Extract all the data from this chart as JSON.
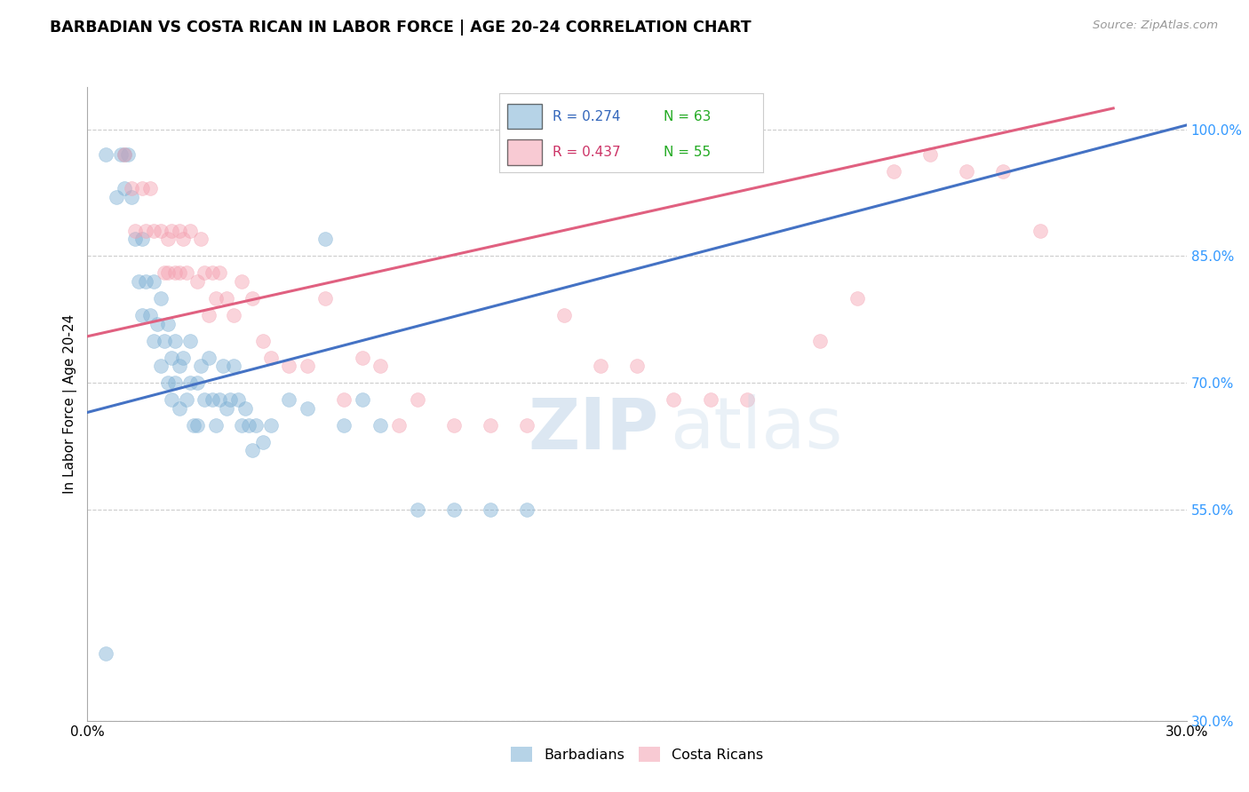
{
  "title": "BARBADIAN VS COSTA RICAN IN LABOR FORCE | AGE 20-24 CORRELATION CHART",
  "source": "Source: ZipAtlas.com",
  "ylabel": "In Labor Force | Age 20-24",
  "xlim": [
    0.0,
    0.3
  ],
  "ylim": [
    0.3,
    1.05
  ],
  "xtick_positions": [
    0.0,
    0.05,
    0.1,
    0.15,
    0.2,
    0.25,
    0.3
  ],
  "xticklabels": [
    "0.0%",
    "",
    "",
    "",
    "",
    "",
    "30.0%"
  ],
  "ytick_positions": [
    0.3,
    0.55,
    0.7,
    0.85,
    1.0
  ],
  "yticklabels": [
    "30.0%",
    "55.0%",
    "70.0%",
    "85.0%",
    "100.0%"
  ],
  "grid_color": "#cccccc",
  "background_color": "#ffffff",
  "blue_color": "#7bafd4",
  "pink_color": "#f4a0b0",
  "blue_line_color": "#4472c4",
  "pink_line_color": "#e06080",
  "blue_line_x0": 0.0,
  "blue_line_x1": 0.3,
  "blue_line_y0": 0.665,
  "blue_line_y1": 1.005,
  "pink_line_x0": 0.0,
  "pink_line_x1": 0.28,
  "pink_line_y0": 0.755,
  "pink_line_y1": 1.025,
  "blue_scatter_x": [
    0.005,
    0.008,
    0.009,
    0.01,
    0.01,
    0.011,
    0.012,
    0.013,
    0.014,
    0.015,
    0.015,
    0.016,
    0.017,
    0.018,
    0.018,
    0.019,
    0.02,
    0.02,
    0.021,
    0.022,
    0.022,
    0.023,
    0.023,
    0.024,
    0.024,
    0.025,
    0.025,
    0.026,
    0.027,
    0.028,
    0.028,
    0.029,
    0.03,
    0.03,
    0.031,
    0.032,
    0.033,
    0.034,
    0.035,
    0.036,
    0.037,
    0.038,
    0.039,
    0.04,
    0.041,
    0.042,
    0.043,
    0.044,
    0.045,
    0.046,
    0.048,
    0.05,
    0.055,
    0.06,
    0.065,
    0.07,
    0.075,
    0.08,
    0.09,
    0.1,
    0.11,
    0.12,
    0.005
  ],
  "blue_scatter_y": [
    0.38,
    0.92,
    0.97,
    0.93,
    0.97,
    0.97,
    0.92,
    0.87,
    0.82,
    0.87,
    0.78,
    0.82,
    0.78,
    0.75,
    0.82,
    0.77,
    0.72,
    0.8,
    0.75,
    0.7,
    0.77,
    0.73,
    0.68,
    0.75,
    0.7,
    0.72,
    0.67,
    0.73,
    0.68,
    0.75,
    0.7,
    0.65,
    0.7,
    0.65,
    0.72,
    0.68,
    0.73,
    0.68,
    0.65,
    0.68,
    0.72,
    0.67,
    0.68,
    0.72,
    0.68,
    0.65,
    0.67,
    0.65,
    0.62,
    0.65,
    0.63,
    0.65,
    0.68,
    0.67,
    0.87,
    0.65,
    0.68,
    0.65,
    0.55,
    0.55,
    0.55,
    0.55,
    0.97
  ],
  "pink_scatter_x": [
    0.01,
    0.012,
    0.013,
    0.015,
    0.016,
    0.017,
    0.018,
    0.02,
    0.021,
    0.022,
    0.022,
    0.023,
    0.024,
    0.025,
    0.025,
    0.026,
    0.027,
    0.028,
    0.03,
    0.031,
    0.032,
    0.033,
    0.034,
    0.035,
    0.036,
    0.038,
    0.04,
    0.042,
    0.045,
    0.048,
    0.05,
    0.055,
    0.06,
    0.065,
    0.07,
    0.075,
    0.08,
    0.085,
    0.09,
    0.1,
    0.11,
    0.12,
    0.13,
    0.14,
    0.15,
    0.16,
    0.17,
    0.18,
    0.2,
    0.21,
    0.22,
    0.23,
    0.24,
    0.25,
    0.26
  ],
  "pink_scatter_y": [
    0.97,
    0.93,
    0.88,
    0.93,
    0.88,
    0.93,
    0.88,
    0.88,
    0.83,
    0.87,
    0.83,
    0.88,
    0.83,
    0.88,
    0.83,
    0.87,
    0.83,
    0.88,
    0.82,
    0.87,
    0.83,
    0.78,
    0.83,
    0.8,
    0.83,
    0.8,
    0.78,
    0.82,
    0.8,
    0.75,
    0.73,
    0.72,
    0.72,
    0.8,
    0.68,
    0.73,
    0.72,
    0.65,
    0.68,
    0.65,
    0.65,
    0.65,
    0.78,
    0.72,
    0.72,
    0.68,
    0.68,
    0.68,
    0.75,
    0.8,
    0.95,
    0.97,
    0.95,
    0.95,
    0.88
  ],
  "legend_blue_label": "R = 0.274   N = 63",
  "legend_pink_label": "R = 0.437   N = 55",
  "bottom_legend_blue": "Barbadians",
  "bottom_legend_pink": "Costa Ricans"
}
